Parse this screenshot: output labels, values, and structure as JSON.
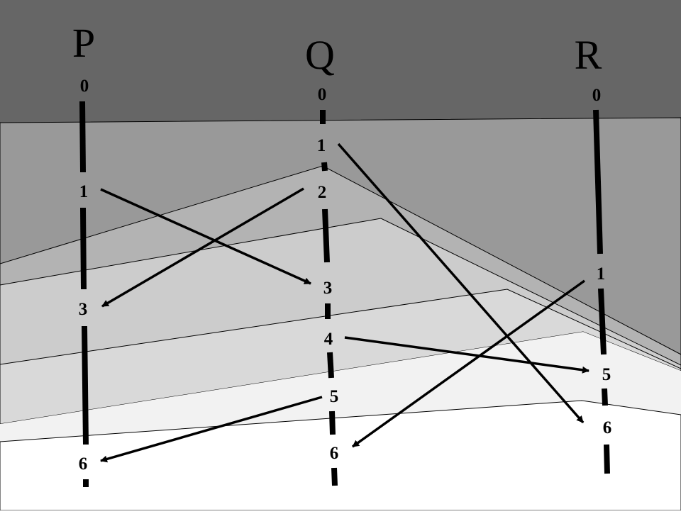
{
  "processes": [
    {
      "id": "P",
      "label": "P",
      "events": [
        {
          "label": "0"
        },
        {
          "label": "1"
        },
        {
          "label": "3"
        },
        {
          "label": "6"
        }
      ]
    },
    {
      "id": "Q",
      "label": "Q",
      "events": [
        {
          "label": "0"
        },
        {
          "label": "1"
        },
        {
          "label": "2"
        },
        {
          "label": "3"
        },
        {
          "label": "4"
        },
        {
          "label": "5"
        },
        {
          "label": "6"
        }
      ]
    },
    {
      "id": "R",
      "label": "R",
      "events": [
        {
          "label": "0"
        },
        {
          "label": "1"
        },
        {
          "label": "5"
        },
        {
          "label": "6"
        }
      ]
    }
  ],
  "messages": [
    {
      "from": "P",
      "from_event": "1",
      "to": "Q",
      "to_event": "3"
    },
    {
      "from": "Q",
      "from_event": "2",
      "to": "P",
      "to_event": "3"
    },
    {
      "from": "Q",
      "from_event": "1",
      "to": "R",
      "to_event": "6"
    },
    {
      "from": "Q",
      "from_event": "4",
      "to": "R",
      "to_event": "5"
    },
    {
      "from": "R",
      "from_event": "1",
      "to": "Q",
      "to_event": "6"
    },
    {
      "from": "Q",
      "from_event": "5",
      "to": "P",
      "to_event": "6"
    }
  ],
  "colors": {
    "band_1": "#666666",
    "band_2": "#999999",
    "band_3": "#b3b3b3",
    "band_4": "#cccccc",
    "band_5": "#d9d9d9",
    "band_6": "#e6e6e6",
    "band_7": "#f2f2f2",
    "band_8": "#ffffff",
    "ink": "#000000"
  }
}
